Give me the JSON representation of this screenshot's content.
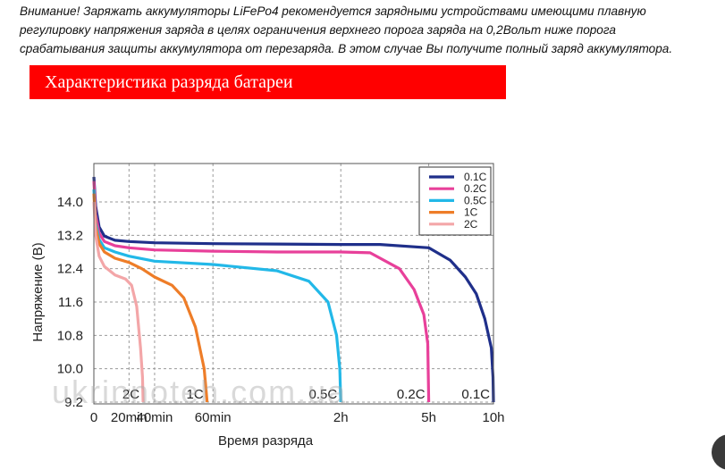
{
  "notice": {
    "line1": "Внимание! Заряжать аккумуляторы LiFePo4 рекомендуется зарядными устройствами имеющими плавную",
    "line2": "регулировку напряжения заряда в целях ограничения верхнего порога заряда на 0,2Вольт ниже порога",
    "line3": "срабатывания защиты аккумулятора от перезаряда. В этом случае Вы получите полный заряд аккумулятора."
  },
  "banner": {
    "title": "Характеристика разряда батареи",
    "color": "#ff0000"
  },
  "watermark": "ukrinnoteh.com.ua",
  "chart_data": {
    "type": "line",
    "ylabel": "Напряжение (В)",
    "xlabel": "Время разряда",
    "ylim": [
      9.2,
      14.8
    ],
    "yticks": [
      "14.0",
      "13.2",
      "12.4",
      "11.6",
      "10.8",
      "10.0",
      "9.2"
    ],
    "ytick_values": [
      14.0,
      13.2,
      12.4,
      11.6,
      10.8,
      10.0,
      9.2
    ],
    "xaxis_scale": "piecewise time (minutes / hours)",
    "xticks": [
      "0",
      "20min",
      "40min",
      "60min",
      "2h",
      "5h",
      "10h"
    ],
    "xtick_values": [
      0,
      20,
      40,
      60,
      120,
      300,
      600
    ],
    "vertical_grid_at": [
      20,
      40,
      60,
      120,
      300,
      600
    ],
    "grid": "dashed",
    "legend_position": "top-right",
    "series": [
      {
        "name": "0.1C",
        "color": "#1f2f8a",
        "end_label": "0.1C",
        "points": [
          [
            0,
            14.6
          ],
          [
            1,
            13.9
          ],
          [
            3,
            13.4
          ],
          [
            6,
            13.18
          ],
          [
            12,
            13.08
          ],
          [
            20,
            13.05
          ],
          [
            40,
            13.02
          ],
          [
            60,
            13.0
          ],
          [
            90,
            12.99
          ],
          [
            120,
            12.98
          ],
          [
            200,
            12.98
          ],
          [
            300,
            12.9
          ],
          [
            400,
            12.6
          ],
          [
            470,
            12.2
          ],
          [
            520,
            11.8
          ],
          [
            560,
            11.2
          ],
          [
            590,
            10.5
          ],
          [
            598,
            9.8
          ],
          [
            600,
            9.2
          ]
        ]
      },
      {
        "name": "0.2C",
        "color": "#e8409a",
        "end_label": "0.2C",
        "points": [
          [
            0,
            14.5
          ],
          [
            1,
            13.7
          ],
          [
            3,
            13.25
          ],
          [
            6,
            13.05
          ],
          [
            12,
            12.95
          ],
          [
            20,
            12.9
          ],
          [
            40,
            12.85
          ],
          [
            60,
            12.82
          ],
          [
            90,
            12.8
          ],
          [
            120,
            12.8
          ],
          [
            180,
            12.78
          ],
          [
            240,
            12.4
          ],
          [
            270,
            11.9
          ],
          [
            290,
            11.3
          ],
          [
            298,
            10.6
          ],
          [
            300,
            9.2
          ]
        ]
      },
      {
        "name": "0.5C",
        "color": "#22b8e8",
        "end_label": "0.5C",
        "points": [
          [
            0,
            14.3
          ],
          [
            1,
            13.5
          ],
          [
            3,
            13.1
          ],
          [
            6,
            12.9
          ],
          [
            12,
            12.8
          ],
          [
            20,
            12.7
          ],
          [
            40,
            12.58
          ],
          [
            60,
            12.5
          ],
          [
            90,
            12.35
          ],
          [
            105,
            12.1
          ],
          [
            114,
            11.6
          ],
          [
            118,
            10.8
          ],
          [
            119.5,
            10.0
          ],
          [
            120,
            9.2
          ]
        ]
      },
      {
        "name": "1C",
        "color": "#ee7d28",
        "end_label": "1C",
        "points": [
          [
            0,
            14.2
          ],
          [
            1,
            13.4
          ],
          [
            3,
            13.0
          ],
          [
            6,
            12.8
          ],
          [
            12,
            12.65
          ],
          [
            20,
            12.55
          ],
          [
            30,
            12.4
          ],
          [
            40,
            12.2
          ],
          [
            46,
            12.0
          ],
          [
            50,
            11.7
          ],
          [
            54,
            11.0
          ],
          [
            57,
            10.0
          ],
          [
            58,
            9.2
          ]
        ]
      },
      {
        "name": "2C",
        "color": "#f3a6a8",
        "end_label": "2C",
        "points": [
          [
            0,
            14.0
          ],
          [
            1,
            13.2
          ],
          [
            3,
            12.7
          ],
          [
            6,
            12.45
          ],
          [
            12,
            12.25
          ],
          [
            18,
            12.15
          ],
          [
            22,
            12.0
          ],
          [
            26,
            11.5
          ],
          [
            29,
            10.5
          ],
          [
            30.5,
            9.8
          ],
          [
            31,
            9.2
          ]
        ]
      }
    ]
  }
}
